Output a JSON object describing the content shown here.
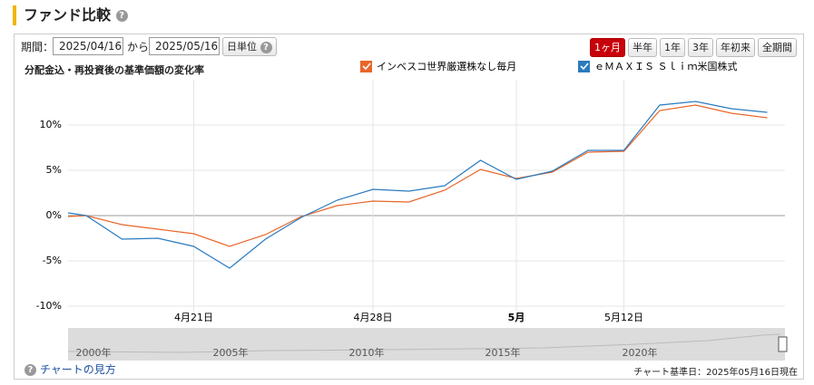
{
  "header": {
    "title": "ファンド比較"
  },
  "controls": {
    "period_label": "期間：",
    "from": "2025/04/16",
    "from_sep": "から",
    "to": "2025/05/16",
    "unit": "日単位",
    "ranges": [
      "1ヶ月",
      "半年",
      "1年",
      "3年",
      "年初来",
      "全期間"
    ],
    "active_range": 0
  },
  "chart_data": {
    "type": "line",
    "title": "分配金込・再投資後の基準価額の変化率",
    "categories": [
      null,
      null,
      null,
      null,
      "4月21日",
      null,
      null,
      null,
      null,
      "4月28日",
      null,
      null,
      null,
      "5月",
      null,
      null,
      "5月12日",
      null,
      null,
      null,
      null
    ],
    "series": [
      {
        "name": "インベスコ世界厳選株なし毎月",
        "color": "#e8662a",
        "values": [
          -0.1,
          0,
          -1.0,
          -1.5,
          -2.0,
          -3.4,
          -2.1,
          -0.1,
          1.1,
          1.6,
          1.5,
          2.8,
          5.1,
          4.1,
          4.8,
          7.0,
          7.1,
          11.6,
          12.2,
          11.3,
          10.8
        ]
      },
      {
        "name": "ｅＭＡＸＩＳ Ｓｌｉｍ米国株式",
        "color": "#2b7bbf",
        "values": [
          0.3,
          0,
          -2.6,
          -2.5,
          -3.4,
          -5.8,
          -2.6,
          -0.2,
          1.7,
          2.9,
          2.7,
          3.3,
          6.1,
          4.0,
          4.9,
          7.2,
          7.2,
          12.2,
          12.6,
          11.8,
          11.4
        ]
      }
    ],
    "ylim": [
      -10.5,
      15
    ],
    "yticks": [
      {
        "value": -10,
        "label": "-10%"
      },
      {
        "value": -5,
        "label": "-5%"
      },
      {
        "value": 0,
        "label": "0%"
      },
      {
        "value": 5,
        "label": "5%"
      },
      {
        "value": 10,
        "label": "10%"
      }
    ],
    "grid": true
  },
  "navigator": {
    "labels": [
      "2000年",
      "2005年",
      "2010年",
      "2015年",
      "2020年"
    ]
  },
  "footer": {
    "help": "チャートの見方",
    "as_of": "チャート基準日：2025年05月16日現在"
  }
}
